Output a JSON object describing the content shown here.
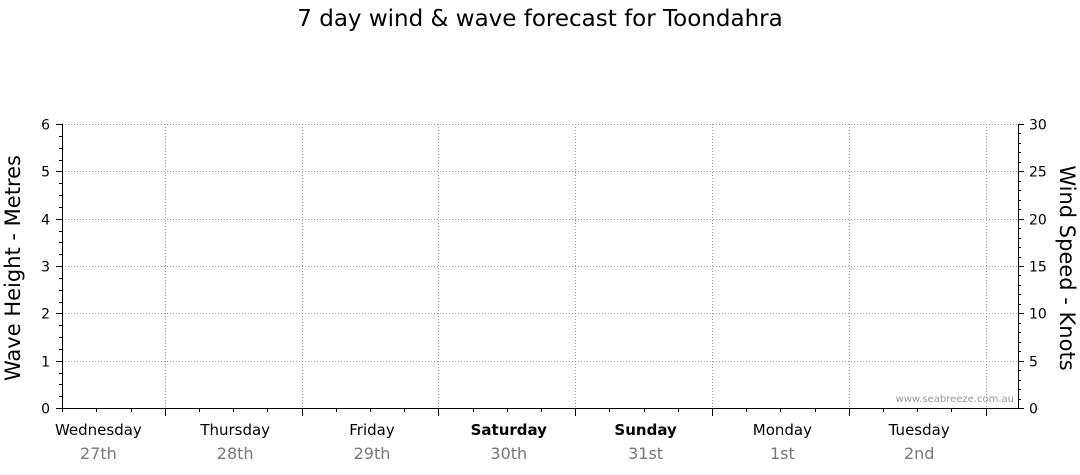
{
  "chart_data": {
    "type": "line",
    "title": "7 day wind & wave forecast for Toondahra",
    "ylabel": "Wave Height - Metres",
    "y2label": "Wind Speed - Knots",
    "ylim": [
      0,
      6
    ],
    "y2lim": [
      0,
      30
    ],
    "yticks": [
      "0",
      "1",
      "2",
      "3",
      "4",
      "5",
      "6"
    ],
    "y2ticks": [
      "0",
      "5",
      "10",
      "15",
      "20",
      "25",
      "30"
    ],
    "grid": true,
    "series": [],
    "days": [
      {
        "name": "Wednesday",
        "date": "27th",
        "weekend": false
      },
      {
        "name": "Thursday",
        "date": "28th",
        "weekend": false
      },
      {
        "name": "Friday",
        "date": "29th",
        "weekend": false
      },
      {
        "name": "Saturday",
        "date": "30th",
        "weekend": true
      },
      {
        "name": "Sunday",
        "date": "31st",
        "weekend": true
      },
      {
        "name": "Monday",
        "date": "1st",
        "weekend": false
      },
      {
        "name": "Tuesday",
        "date": "2nd",
        "weekend": false
      }
    ],
    "watermark": "www.seabreeze.com.au"
  }
}
